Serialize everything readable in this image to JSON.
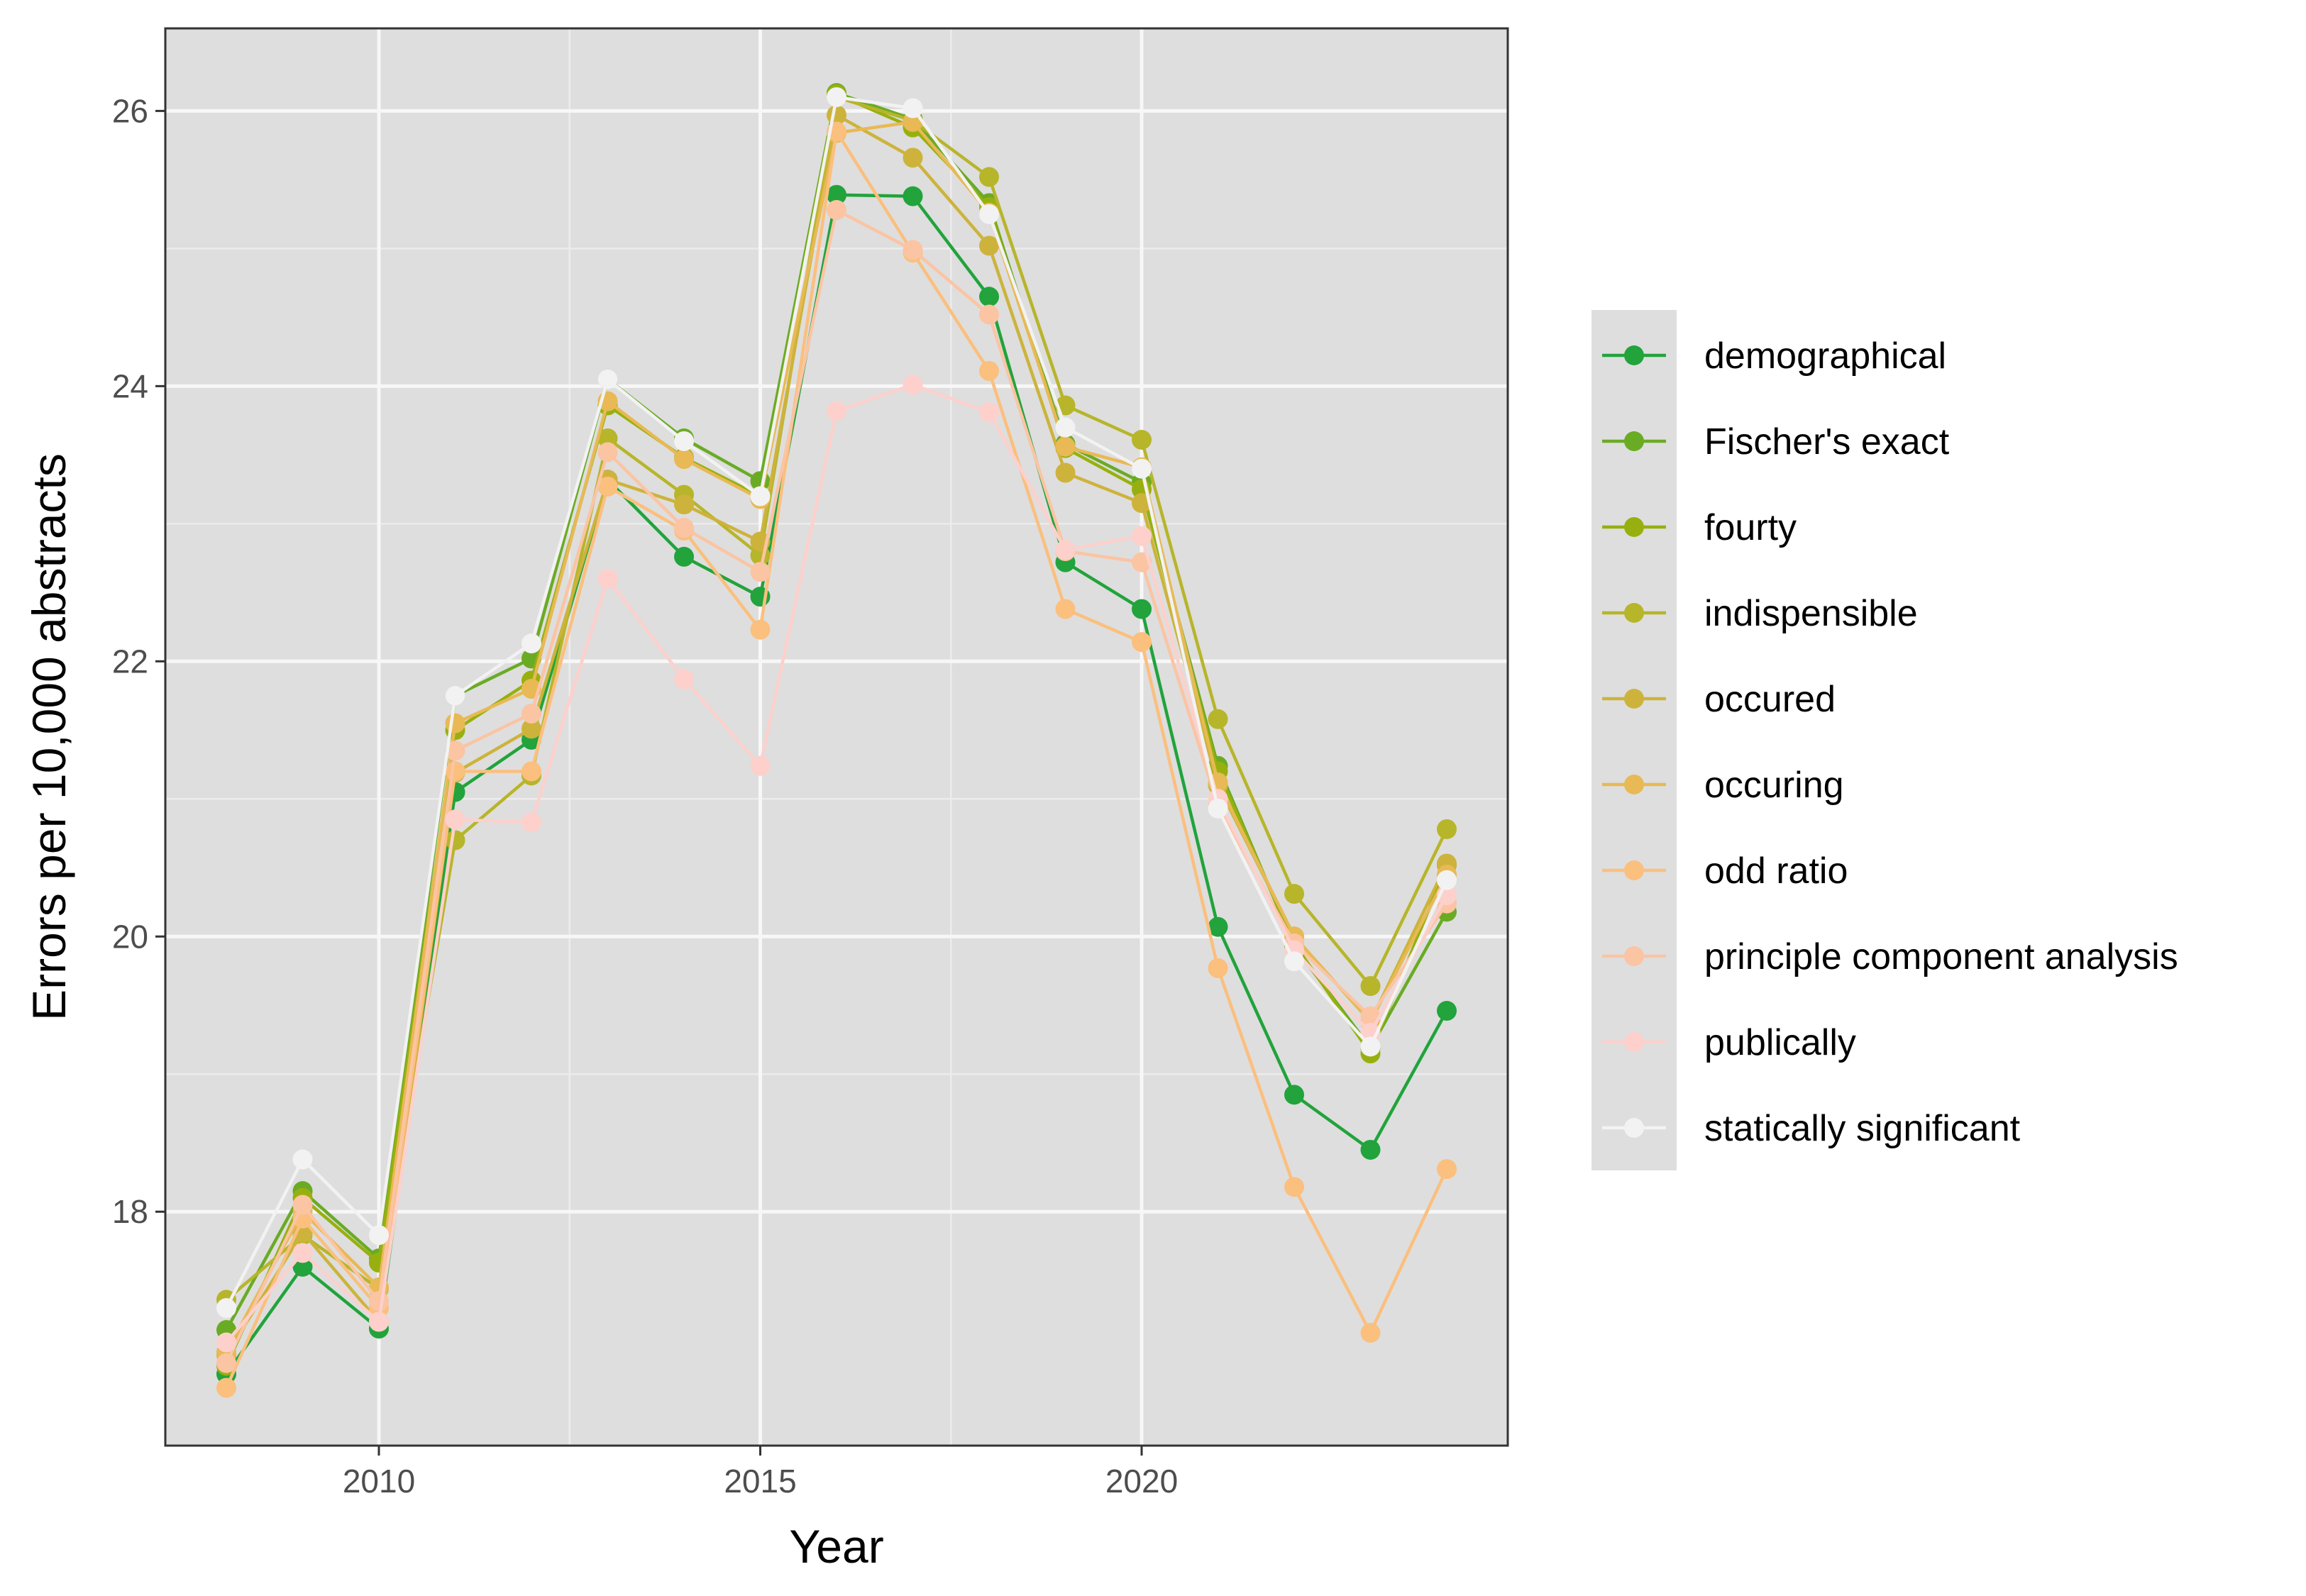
{
  "chart_data": {
    "type": "line",
    "xlabel": "Year",
    "ylabel": "Errors per 10,000 abstracts",
    "xlim": [
      2007.2,
      2024.8
    ],
    "ylim": [
      16.3,
      26.6
    ],
    "x_ticks": [
      2010,
      2015,
      2020
    ],
    "x_tick_labels": [
      "2010",
      "2015",
      "2020"
    ],
    "y_ticks": [
      18,
      20,
      22,
      24,
      26
    ],
    "y_tick_labels": [
      "18",
      "20",
      "22",
      "24",
      "26"
    ],
    "grid": true,
    "legend_position": "right",
    "x": [
      2008,
      2009,
      2010,
      2011,
      2012,
      2013,
      2014,
      2015,
      2016,
      2017,
      2018,
      2019,
      2020,
      2021,
      2022,
      2023,
      2024
    ],
    "series": [
      {
        "name": "demographical",
        "color": "#22a33c",
        "values": [
          16.82,
          17.6,
          17.15,
          21.05,
          21.43,
          23.32,
          22.76,
          22.47,
          25.39,
          25.38,
          24.65,
          22.72,
          22.38,
          20.07,
          18.85,
          18.45,
          19.46
        ]
      },
      {
        "name": "Fischer's exact",
        "color": "#6aab24",
        "values": [
          17.14,
          18.15,
          17.66,
          21.75,
          22.02,
          24.05,
          23.62,
          23.31,
          26.13,
          25.94,
          25.33,
          23.58,
          23.3,
          21.24,
          19.93,
          19.19,
          20.18
        ]
      },
      {
        "name": "fourty",
        "color": "#98b00f",
        "values": [
          16.88,
          18.1,
          17.63,
          21.5,
          21.86,
          23.86,
          23.48,
          23.2,
          26.12,
          25.88,
          25.3,
          23.55,
          23.25,
          21.2,
          19.95,
          19.15,
          20.52
        ]
      },
      {
        "name": "indispensible",
        "color": "#b7b52a",
        "values": [
          17.36,
          17.83,
          17.44,
          20.7,
          21.17,
          23.62,
          23.21,
          22.77,
          26.1,
          25.93,
          25.52,
          23.86,
          23.61,
          21.58,
          20.31,
          19.64,
          20.78
        ]
      },
      {
        "name": "occured",
        "color": "#cdb33c",
        "values": [
          16.96,
          17.85,
          17.2,
          21.19,
          21.51,
          23.32,
          23.14,
          22.87,
          25.97,
          25.66,
          25.02,
          23.37,
          23.15,
          21.1,
          20.0,
          19.38,
          20.53
        ]
      },
      {
        "name": "occuring",
        "color": "#e8b954",
        "values": [
          16.98,
          18.0,
          17.45,
          21.55,
          21.8,
          23.89,
          23.47,
          23.18,
          25.84,
          25.92,
          25.26,
          23.56,
          23.41,
          21.12,
          20.0,
          19.38,
          20.45
        ]
      },
      {
        "name": "odd ratio",
        "color": "#fbbf7e",
        "values": [
          16.72,
          17.95,
          17.3,
          21.2,
          21.2,
          23.27,
          22.95,
          22.23,
          25.85,
          24.97,
          24.11,
          22.38,
          22.14,
          19.77,
          18.18,
          17.12,
          18.31
        ]
      },
      {
        "name": "principle component analysis",
        "color": "#fbc4a3",
        "values": [
          16.9,
          18.05,
          17.35,
          21.35,
          21.62,
          23.52,
          22.97,
          22.65,
          25.28,
          24.99,
          24.52,
          22.8,
          22.72,
          20.95,
          19.95,
          19.42,
          20.24
        ]
      },
      {
        "name": "publically",
        "color": "#fdd0cc",
        "values": [
          17.05,
          17.7,
          17.2,
          20.85,
          20.83,
          22.6,
          21.87,
          21.24,
          23.82,
          24.01,
          23.81,
          22.81,
          22.91,
          21.0,
          19.9,
          19.3,
          20.3
        ]
      },
      {
        "name": "statically significant",
        "color": "#f2f2f2",
        "values": [
          17.3,
          18.38,
          17.83,
          21.75,
          22.13,
          24.05,
          23.6,
          23.2,
          26.1,
          26.02,
          25.25,
          23.7,
          23.4,
          20.93,
          19.82,
          19.2,
          20.41
        ]
      }
    ]
  }
}
